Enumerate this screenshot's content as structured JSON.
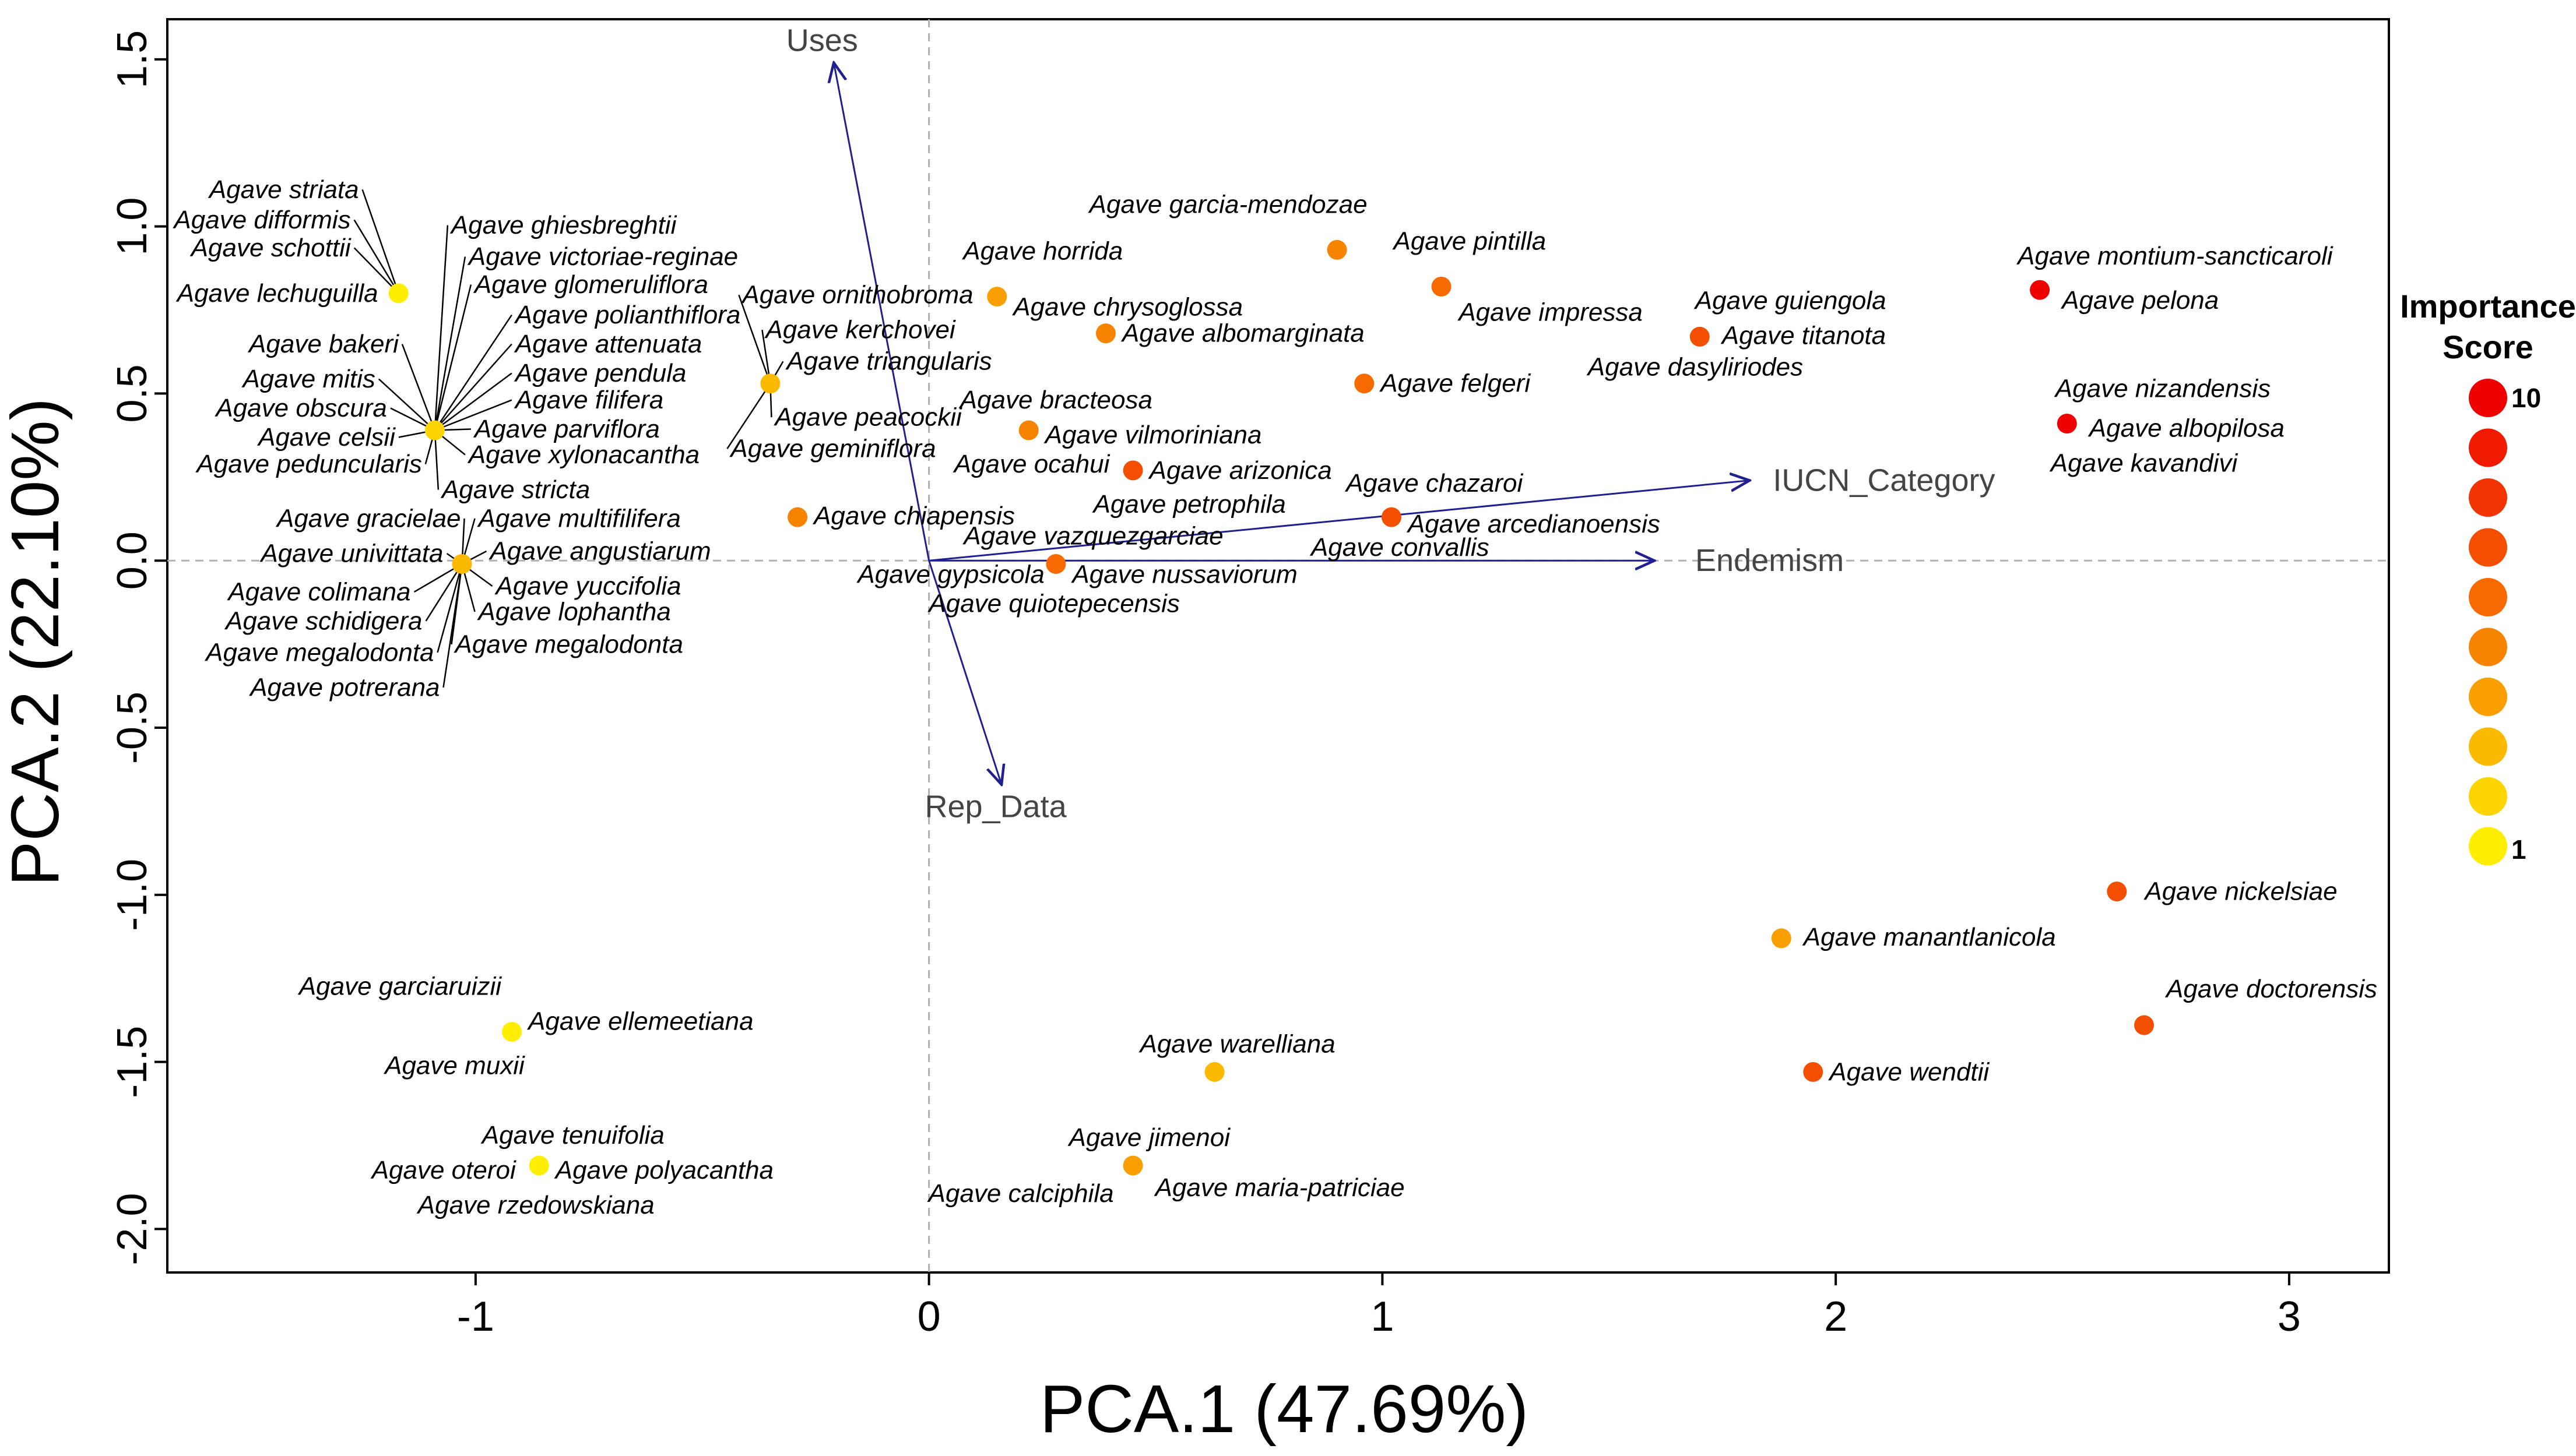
{
  "chart_data": {
    "type": "scatter",
    "title": "",
    "xlabel": "PCA.1 (47.69%)",
    "ylabel": "PCA.2 (22.10%)",
    "xlim": [
      -1.68,
      3.22
    ],
    "ylim": [
      -2.13,
      1.62
    ],
    "xticks": [
      -1,
      0,
      1,
      2,
      3
    ],
    "yticks": [
      -2.0,
      -1.5,
      -1.0,
      -0.5,
      0.0,
      0.5,
      1.0,
      1.5
    ],
    "xtick_labels": [
      "-1",
      "0",
      "1",
      "2",
      "3"
    ],
    "ytick_labels": [
      "-2.0",
      "-1.5",
      "-1.0",
      "-0.5",
      "0.0",
      "0.5",
      "1.0",
      "1.5"
    ],
    "reference_lines": {
      "x": 0,
      "y": 0
    },
    "color_scale": {
      "low": "#ffee00",
      "high": "#ee0000"
    },
    "loadings": [
      {
        "name": "Uses",
        "x": -0.21,
        "y": 1.49,
        "label": "Uses"
      },
      {
        "name": "IUCN_Category",
        "x": 1.81,
        "y": 0.24,
        "label": "IUCN_Category"
      },
      {
        "name": "Endemism",
        "x": 1.6,
        "y": 0.0,
        "label": "Endemism"
      },
      {
        "name": "Rep_Data",
        "x": 0.16,
        "y": -0.67,
        "label": "Rep_Data"
      }
    ],
    "points": [
      {
        "x": -1.17,
        "y": 0.8,
        "score": 1,
        "labels": [
          "Agave striata",
          "Agave difformis",
          "Agave schottii",
          "Agave lechuguilla"
        ]
      },
      {
        "x": -1.09,
        "y": 0.39,
        "score": 2,
        "labels": [
          "Agave ghiesbreghtii",
          "Agave victoriae-reginae",
          "Agave glomeruliflora",
          "Agave polianthiflora",
          "Agave attenuata",
          "Agave pendula",
          "Agave filifera",
          "Agave parviflora",
          "Agave xylonacantha",
          "Agave bakeri",
          "Agave mitis",
          "Agave obscura",
          "Agave celsii",
          "Agave peduncularis",
          "Agave stricta"
        ]
      },
      {
        "x": -1.03,
        "y": -0.01,
        "score": 3,
        "labels": [
          "Agave gracielae",
          "Agave multifilifera",
          "Agave univittata",
          "Agave angustiarum",
          "Agave colimana",
          "Agave yuccifolia",
          "Agave schidigera",
          "Agave lophantha",
          "Agave megalodonta",
          "Agave megalodonta",
          "Agave potrerana"
        ]
      },
      {
        "x": -0.35,
        "y": 0.53,
        "score": 3,
        "labels": [
          "Agave ornithobroma",
          "Agave kerchovei",
          "Agave triangularis",
          "Agave peacockii",
          "Agave geminiflora"
        ]
      },
      {
        "x": -0.29,
        "y": 0.13,
        "score": 5,
        "labels": [
          "Agave chiapensis"
        ]
      },
      {
        "x": 0.15,
        "y": 0.79,
        "score": 4,
        "labels": [
          "Agave horrida",
          "Agave chrysoglossa"
        ]
      },
      {
        "x": 0.39,
        "y": 0.68,
        "score": 5,
        "labels": [
          "Agave albomarginata"
        ]
      },
      {
        "x": 0.22,
        "y": 0.39,
        "score": 5,
        "labels": [
          "Agave bracteosa",
          "Agave vilmoriniana",
          "Agave ocahui"
        ]
      },
      {
        "x": 0.45,
        "y": 0.27,
        "score": 7,
        "labels": [
          "Agave arizonica",
          "Agave petrophila"
        ]
      },
      {
        "x": 0.28,
        "y": -0.01,
        "score": 6,
        "labels": [
          "Agave vazquezgarciae",
          "Agave gypsicola",
          "Agave nussaviorum",
          "Agave quiotepecensis"
        ]
      },
      {
        "x": 0.9,
        "y": 0.93,
        "score": 5,
        "labels": [
          "Agave garcia-mendozae"
        ]
      },
      {
        "x": 1.13,
        "y": 0.82,
        "score": 6,
        "labels": [
          "Agave pintilla"
        ]
      },
      {
        "x": 0.96,
        "y": 0.53,
        "score": 6,
        "labels": [
          "Agave felgeri"
        ]
      },
      {
        "x": 1.02,
        "y": 0.13,
        "score": 7,
        "labels": [
          "Agave chazaroi",
          "Agave arcedianoensis",
          "Agave convallis"
        ]
      },
      {
        "x": 1.7,
        "y": 0.67,
        "score": 7,
        "labels": [
          "Agave impressa",
          "Agave guiengola",
          "Agave titanota",
          "Agave dasyliriodes"
        ]
      },
      {
        "x": 2.45,
        "y": 0.81,
        "score": 10,
        "labels": [
          "Agave montium-sancticaroli",
          "Agave pelona"
        ]
      },
      {
        "x": 2.51,
        "y": 0.41,
        "score": 10,
        "labels": [
          "Agave nizandensis",
          "Agave albopilosa",
          "Agave kavandivi"
        ]
      },
      {
        "x": 2.62,
        "y": -0.99,
        "score": 7,
        "labels": [
          "Agave nickelsiae"
        ]
      },
      {
        "x": 1.88,
        "y": -1.13,
        "score": 4,
        "labels": [
          "Agave manantlanicola"
        ]
      },
      {
        "x": 2.68,
        "y": -1.39,
        "score": 7,
        "labels": [
          "Agave doctorensis"
        ]
      },
      {
        "x": 1.95,
        "y": -1.53,
        "score": 7,
        "labels": [
          "Agave wendtii"
        ]
      },
      {
        "x": 0.63,
        "y": -1.53,
        "score": 3,
        "labels": [
          "Agave warelliana"
        ]
      },
      {
        "x": 0.45,
        "y": -1.81,
        "score": 4,
        "labels": [
          "Agave jimenoi",
          "Agave calciphila",
          "Agave maria-patriciae"
        ]
      },
      {
        "x": -0.92,
        "y": -1.41,
        "score": 1,
        "labels": [
          "Agave garciaruizii",
          "Agave ellemeetiana",
          "Agave muxii"
        ]
      },
      {
        "x": -0.86,
        "y": -1.81,
        "score": 1,
        "labels": [
          "Agave tenuifolia",
          "Agave oteroi",
          "Agave polyacantha",
          "Agave rzedowskiana"
        ]
      }
    ],
    "legend": {
      "title_line1": "Importance",
      "title_line2": "Score",
      "levels": [
        10,
        9,
        8,
        7,
        6,
        5,
        4,
        3,
        2,
        1
      ],
      "label_high": "10",
      "label_low": "1",
      "placement": "right"
    }
  }
}
